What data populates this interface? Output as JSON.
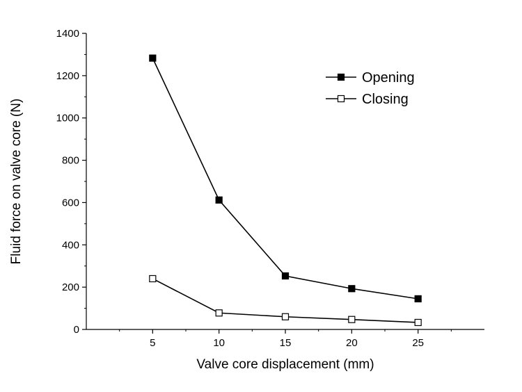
{
  "chart_data": {
    "type": "line",
    "x": [
      5,
      10,
      15,
      20,
      25
    ],
    "series": [
      {
        "name": "Opening",
        "values": [
          1283,
          612,
          253,
          193,
          145
        ],
        "marker": "filled-square",
        "color": "#000000"
      },
      {
        "name": "Closing",
        "values": [
          240,
          78,
          60,
          47,
          33
        ],
        "marker": "hollow-square",
        "color": "#000000"
      }
    ],
    "title": "",
    "xlabel": "Valve core displacement (mm)",
    "ylabel": "Fluid force on valve core (N)",
    "xlim": [
      0,
      30
    ],
    "ylim": [
      0,
      1400
    ],
    "xticks": [
      5,
      10,
      15,
      20,
      25
    ],
    "yticks": [
      0,
      200,
      400,
      600,
      800,
      1000,
      1200,
      1400
    ],
    "grid": false,
    "legend_position": "top-right"
  }
}
